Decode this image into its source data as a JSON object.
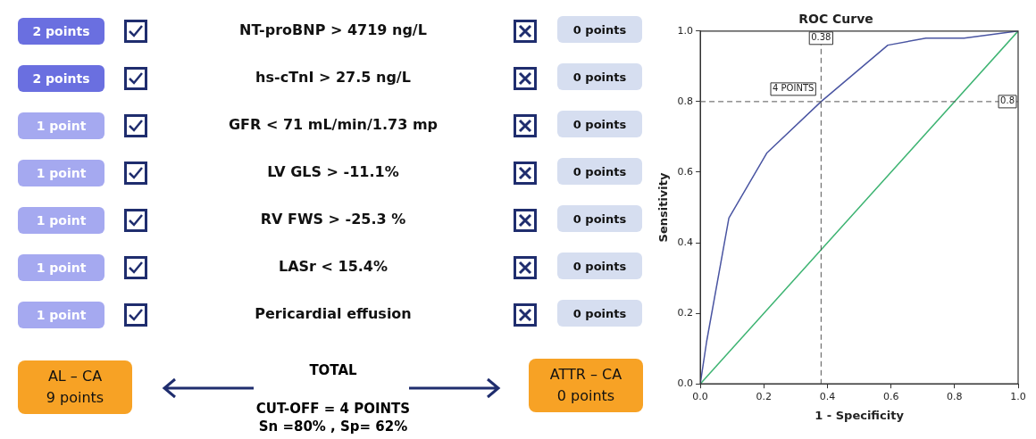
{
  "chart_data": [
    {
      "type": "other",
      "annotations": [
        "2 points",
        "NT-proBNP > 4719 ng/L",
        "0 points",
        "2 points",
        "hs-cTnI > 27.5 ng/L",
        "0 points",
        "1 point",
        "GFR  < 71 mL/min/1.73 mp",
        "0 points",
        "1 point",
        "LV GLS > -11.1%",
        "0 points",
        "1 point",
        "RV FWS > -25.3 %",
        "0 points",
        "1 point",
        "LASr < 15.4%",
        "0 points",
        "1 point",
        "Pericardial effusion",
        "0 points",
        "AL – CA",
        "9 points",
        "TOTAL",
        "ATTR – CA",
        "0 points",
        "CUT-OFF = 4 POINTS",
        "Sn =80% , Sp= 62%"
      ]
    },
    {
      "type": "line",
      "title": "ROC Curve",
      "xlabel": "1 - Specificity",
      "ylabel": "Sensitivity",
      "xlim": [
        0,
        1
      ],
      "ylim": [
        0,
        1
      ],
      "xticks": [
        {
          "value": 0,
          "label": "0.0"
        },
        {
          "value": 0.2,
          "label": "0.2"
        },
        {
          "value": 0.4,
          "label": "0.4"
        },
        {
          "value": 0.6,
          "label": "0.6"
        },
        {
          "value": 0.8,
          "label": "0.8"
        },
        {
          "value": 1,
          "label": "1.0"
        }
      ],
      "yticks": [
        {
          "value": 0,
          "label": "0.0"
        },
        {
          "value": 0.2,
          "label": "0.2"
        },
        {
          "value": 0.4,
          "label": "0.4"
        },
        {
          "value": 0.6,
          "label": "0.6"
        },
        {
          "value": 0.8,
          "label": "0.8"
        },
        {
          "value": 1,
          "label": "1.0"
        }
      ],
      "series": [
        {
          "color": "#4a55a2",
          "x": [
            0,
            0.02,
            0.09,
            0.21,
            0.38,
            0.59,
            0.71,
            0.83,
            1
          ],
          "values": [
            0,
            0.12,
            0.47,
            0.655,
            0.8,
            0.96,
            0.98,
            0.98,
            1
          ]
        },
        {
          "color": "#3cb371",
          "x": [
            0,
            1
          ],
          "values": [
            0,
            1
          ]
        }
      ],
      "ref_lines": [
        {
          "axis": "x",
          "value": 0.38,
          "label": "0.38",
          "line_style": "dashed"
        },
        {
          "axis": "y",
          "value": 0.8,
          "label": "0.8",
          "line_style": "dashed"
        }
      ],
      "annotations": [
        {
          "text": "4 POINTS",
          "x": 0.38,
          "y": 0.8
        }
      ],
      "grid": false,
      "legend": false,
      "marker": "none",
      "line_style": "solid"
    }
  ]
}
